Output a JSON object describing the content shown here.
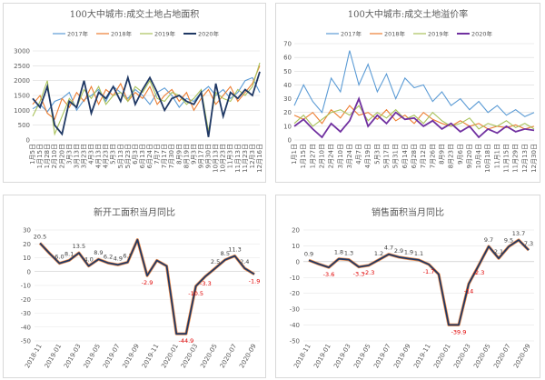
{
  "colors": {
    "s2017": "#5b9bd5",
    "s2018": "#ed7d31",
    "s2019": "#a9c25b",
    "s2020": "#1f3864",
    "s2020b": "#7030a0",
    "yoy_line": "#1f3864",
    "neg_label": "#e00000",
    "pos_label": "#404040"
  },
  "chart_data": [
    {
      "type": "line",
      "title": "100大中城市:成交土地占地面积",
      "ylim": [
        0,
        3000
      ],
      "yticks": [
        "0",
        "500",
        "1000",
        "1500",
        "2000",
        "2500",
        "3000"
      ],
      "xtick_labels": [
        "1月5日",
        "1月15日",
        "1月28日",
        "2月10日",
        "2月20日",
        "3月3日",
        "3月13日",
        "3月23日",
        "4月3日",
        "4月13日",
        "4月23日",
        "5月3日",
        "5月13日",
        "5月23日",
        "6月3日",
        "6月13日",
        "6月24日",
        "7月7日",
        "7月17日",
        "7月30日",
        "8月9日",
        "8月19日",
        "9月3日",
        "9月17日",
        "9月30日",
        "10月13日",
        "10月23日",
        "11月3日",
        "11月13日",
        "11月23日",
        "12月3日",
        "12月16日"
      ],
      "legend": "top",
      "series": [
        {
          "name": "2017年",
          "values": [
            1050,
            1200,
            950,
            1300,
            1400,
            1600,
            1000,
            1350,
            1500,
            1700,
            1300,
            1800,
            1600,
            1400,
            1700,
            1500,
            1200,
            1600,
            1750,
            1500,
            1100,
            1400,
            1300,
            1600,
            1800,
            1500,
            1700,
            1400,
            1600,
            2000,
            2100,
            1600
          ]
        },
        {
          "name": "2018年",
          "values": [
            1200,
            1500,
            900,
            700,
            1400,
            1100,
            1600,
            1300,
            1800,
            1200,
            1700,
            1500,
            1900,
            1300,
            1600,
            1400,
            1800,
            1200,
            1500,
            1700,
            1300,
            1600,
            1000,
            1400,
            1700,
            1200,
            1500,
            1800,
            1300,
            1600,
            1900,
            2500
          ]
        },
        {
          "name": "2019年",
          "values": [
            800,
            1300,
            2000,
            200,
            800,
            1400,
            1100,
            1700,
            1400,
            1800,
            1200,
            1500,
            1600,
            1300,
            1800,
            1600,
            2000,
            1400,
            1300,
            1600,
            1500,
            1200,
            1400,
            1700,
            300,
            1600,
            1400,
            1300,
            1700,
            1500,
            1800,
            2600
          ]
        },
        {
          "name": "2020年",
          "values": [
            1400,
            1100,
            1800,
            500,
            200,
            1300,
            1100,
            2000,
            900,
            1600,
            1400,
            1800,
            1300,
            2100,
            1200,
            1700,
            2100,
            1600,
            1000,
            1400,
            1500,
            1300,
            1200,
            1600,
            100,
            1900,
            800,
            1600,
            1400,
            1700,
            1500,
            2300
          ]
        }
      ]
    },
    {
      "type": "line",
      "title": "100大中城市:成交土地溢价率",
      "ylim": [
        0,
        70
      ],
      "yticks": [
        "0",
        "10",
        "20",
        "30",
        "40",
        "50",
        "60",
        "70"
      ],
      "xtick_labels": [
        "1月1日",
        "1月15日",
        "1月27日",
        "2月10日",
        "2月24日",
        "3月10日",
        "3月24日",
        "4月7日",
        "4月19日",
        "5月3日",
        "5月17日",
        "5月31日",
        "6月14日",
        "6月28日",
        "7月12日",
        "7月26日",
        "8月9日",
        "8月23日",
        "9月6日",
        "9月20日",
        "10月4日",
        "10月18日",
        "11月1日",
        "11月15日",
        "11月29日",
        "12月13日",
        "12月30日"
      ],
      "legend": "top",
      "series": [
        {
          "name": "2017年",
          "values": [
            25,
            40,
            28,
            20,
            45,
            35,
            65,
            40,
            55,
            35,
            48,
            30,
            45,
            38,
            40,
            28,
            35,
            25,
            30,
            22,
            28,
            20,
            25,
            18,
            22,
            17,
            20
          ]
        },
        {
          "name": "2018年",
          "values": [
            18,
            15,
            20,
            12,
            22,
            16,
            25,
            18,
            20,
            15,
            22,
            14,
            18,
            12,
            20,
            15,
            12,
            10,
            14,
            10,
            12,
            8,
            10,
            9,
            11,
            8,
            10
          ]
        },
        {
          "name": "2019年",
          "values": [
            12,
            18,
            10,
            15,
            20,
            22,
            18,
            25,
            14,
            20,
            16,
            22,
            15,
            18,
            12,
            20,
            14,
            10,
            12,
            16,
            8,
            12,
            10,
            14,
            9,
            12,
            8
          ]
        },
        {
          "name": "2020年",
          "values": [
            10,
            15,
            8,
            2,
            12,
            6,
            14,
            30,
            10,
            18,
            12,
            20,
            15,
            16,
            10,
            14,
            8,
            12,
            6,
            10,
            2,
            8,
            5,
            10,
            6,
            8,
            7
          ]
        }
      ]
    },
    {
      "type": "line",
      "title": "新开工面积当月同比",
      "ylim": [
        -50,
        30
      ],
      "yticks": [
        "30",
        "20",
        "10",
        "0",
        "-10",
        "-20",
        "-30",
        "-40",
        "-50"
      ],
      "x": [
        "2018-11",
        "2018-12",
        "2019-01",
        "2019-02",
        "2019-03",
        "2019-04",
        "2019-05",
        "2019-06",
        "2019-07",
        "2019-08",
        "2019-09",
        "2019-10",
        "2019-11",
        "2019-12",
        "2020-01",
        "2020-02",
        "2020-03",
        "2020-04",
        "2020-05",
        "2020-06",
        "2020-07",
        "2020-08",
        "2020-09"
      ],
      "xtick_labels": [
        "2018-11",
        "2019-01",
        "2019-03",
        "2019-05",
        "2019-07",
        "2019-09",
        "2019-11",
        "2020-01",
        "2020-03",
        "2020-05",
        "2020-07",
        "2020-09"
      ],
      "values": [
        20.5,
        13.0,
        6.0,
        8.1,
        13.5,
        4.0,
        8.9,
        6.2,
        4.9,
        6.7,
        23.0,
        -2.9,
        8.0,
        4.0,
        -44.9,
        -44.9,
        -10.5,
        -3.3,
        2.5,
        8.5,
        11.3,
        2.4,
        -1.9
      ],
      "labels": [
        "20.5",
        "",
        "6.0",
        "8.1",
        "13.5",
        "4.0",
        "8.9",
        "6.2",
        "4.9",
        "6.7",
        "",
        "-2.9",
        "",
        "",
        "",
        "-44.9",
        "-10.5",
        "-3.3",
        "2.5",
        "8.5",
        "11.3",
        "2.4",
        "-1.9"
      ]
    },
    {
      "type": "line",
      "title": "销售面积当月同比",
      "ylim": [
        -50,
        20
      ],
      "yticks": [
        "20",
        "10",
        "0",
        "-10",
        "-20",
        "-30",
        "-40",
        "-50"
      ],
      "x": [
        "2018-11",
        "2018-12",
        "2019-01",
        "2019-02",
        "2019-03",
        "2019-04",
        "2019-05",
        "2019-06",
        "2019-07",
        "2019-08",
        "2019-09",
        "2019-10",
        "2019-11",
        "2019-12",
        "2020-01",
        "2020-02",
        "2020-03",
        "2020-04",
        "2020-05",
        "2020-06",
        "2020-07",
        "2020-08",
        "2020-09"
      ],
      "xtick_labels": [
        "2018-11",
        "2019-01",
        "2019-03",
        "2019-05",
        "2019-07",
        "2019-09",
        "2019-11",
        "2020-01",
        "2020-03",
        "2020-05",
        "2020-07",
        "2020-09"
      ],
      "values": [
        0.9,
        -1.5,
        -3.6,
        1.8,
        1.3,
        -3.3,
        -2.3,
        1.2,
        4.7,
        2.9,
        1.9,
        1.1,
        -1.7,
        -8.0,
        -39.9,
        -39.9,
        -14.0,
        -2.3,
        9.7,
        2.1,
        9.5,
        13.7,
        7.3
      ],
      "labels": [
        "0.9",
        "",
        "-3.6",
        "1.8",
        "1.3",
        "-3.3",
        "-2.3",
        "1.2",
        "4.7",
        "2.9",
        "1.9",
        "1.1",
        "-1.7",
        "",
        "",
        "-39.9",
        "-14",
        "-2.3",
        "9.7",
        "2.1",
        "9.5",
        "13.7",
        "7.3"
      ]
    }
  ]
}
